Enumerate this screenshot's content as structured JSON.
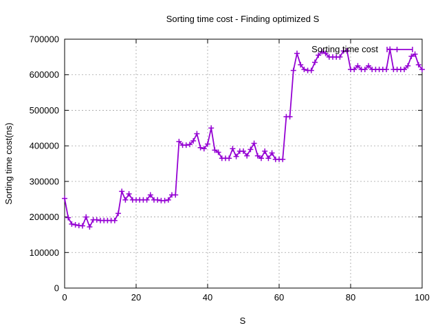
{
  "chart_data": {
    "type": "line",
    "title": "Sorting time cost - Finding optimized S",
    "xlabel": "S",
    "ylabel": "Sorting time cost(ns)",
    "xlim": [
      0,
      100
    ],
    "ylim": [
      0,
      700000
    ],
    "xticks": [
      "0",
      "20",
      "40",
      "60",
      "80",
      "100"
    ],
    "yticks": [
      "0",
      "100000",
      "200000",
      "300000",
      "400000",
      "500000",
      "600000",
      "700000"
    ],
    "grid": true,
    "legend_position": "top-right",
    "series": [
      {
        "name": "Sorting time cost",
        "color": "#9400d3",
        "marker": "plus",
        "x": [
          0,
          1,
          2,
          3,
          4,
          5,
          6,
          7,
          8,
          9,
          10,
          11,
          12,
          13,
          14,
          15,
          16,
          17,
          18,
          19,
          20,
          21,
          22,
          23,
          24,
          25,
          26,
          27,
          28,
          29,
          30,
          31,
          32,
          33,
          34,
          35,
          36,
          37,
          38,
          39,
          40,
          41,
          42,
          43,
          44,
          45,
          46,
          47,
          48,
          49,
          50,
          51,
          52,
          53,
          54,
          55,
          56,
          57,
          58,
          59,
          60,
          61,
          62,
          63,
          64,
          65,
          66,
          67,
          68,
          69,
          70,
          71,
          72,
          73,
          74,
          75,
          76,
          77,
          78,
          79,
          80,
          81,
          82,
          83,
          84,
          85,
          86,
          87,
          88,
          89,
          90,
          91,
          92,
          93,
          94,
          95,
          96,
          97,
          98,
          99,
          100
        ],
        "y": [
          252000,
          198000,
          180000,
          178000,
          176000,
          175000,
          200000,
          172000,
          192000,
          192000,
          190000,
          190000,
          190000,
          190000,
          190000,
          210000,
          272000,
          248000,
          265000,
          248000,
          248000,
          248000,
          248000,
          248000,
          262000,
          248000,
          248000,
          246000,
          246000,
          248000,
          262000,
          262000,
          412000,
          402000,
          402000,
          404000,
          414000,
          434000,
          395000,
          392000,
          405000,
          450000,
          388000,
          382000,
          365000,
          365000,
          365000,
          392000,
          370000,
          385000,
          385000,
          372000,
          390000,
          407000,
          372000,
          365000,
          385000,
          365000,
          380000,
          362000,
          362000,
          362000,
          482000,
          482000,
          612000,
          660000,
          628000,
          615000,
          612000,
          612000,
          635000,
          655000,
          665000,
          660000,
          650000,
          650000,
          650000,
          650000,
          667000,
          667000,
          615000,
          615000,
          625000,
          615000,
          615000,
          625000,
          615000,
          615000,
          615000,
          615000,
          615000,
          672000,
          615000,
          615000,
          615000,
          615000,
          625000,
          652000,
          658000,
          628000,
          615000
        ]
      }
    ]
  }
}
